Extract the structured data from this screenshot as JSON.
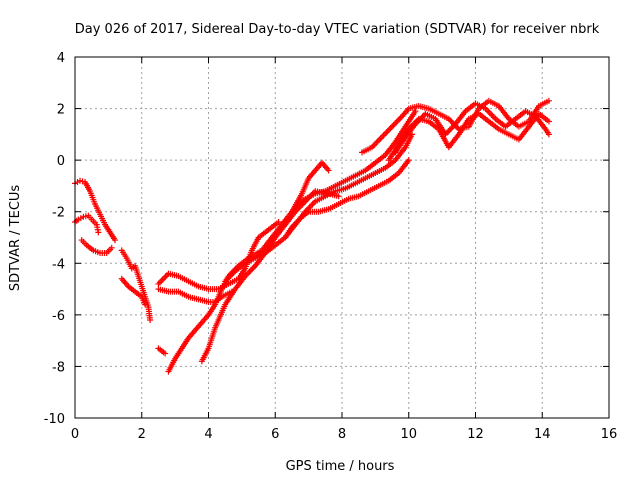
{
  "chart_data": {
    "type": "scatter",
    "title": "Day 026 of 2017, Sidereal Day-to-day VTEC variation (SDTVAR) for receiver nbrk",
    "xlabel": "GPS time / hours",
    "ylabel": "SDTVAR / TECUs",
    "xlim": [
      0,
      16
    ],
    "ylim": [
      -10,
      4
    ],
    "xticks": [
      "0",
      "2",
      "4",
      "6",
      "8",
      "10",
      "12",
      "14",
      "16"
    ],
    "yticks": [
      "-10",
      "-8",
      "-6",
      "-4",
      "-2",
      "0",
      "2",
      "4"
    ],
    "grid": true,
    "marker": "plus",
    "color": "#ff0000",
    "series": [
      {
        "points": [
          [
            0.0,
            -0.9
          ],
          [
            0.15,
            -0.8
          ],
          [
            0.3,
            -0.85
          ],
          [
            0.45,
            -1.2
          ],
          [
            0.6,
            -1.7
          ],
          [
            0.75,
            -2.1
          ],
          [
            0.9,
            -2.5
          ],
          [
            1.1,
            -2.9
          ],
          [
            1.2,
            -3.1
          ]
        ]
      },
      {
        "points": [
          [
            0.0,
            -2.4
          ],
          [
            0.1,
            -2.3
          ],
          [
            0.25,
            -2.2
          ],
          [
            0.4,
            -2.15
          ],
          [
            0.5,
            -2.3
          ],
          [
            0.65,
            -2.5
          ],
          [
            0.7,
            -2.8
          ]
        ]
      },
      {
        "points": [
          [
            0.2,
            -3.1
          ],
          [
            0.35,
            -3.3
          ],
          [
            0.55,
            -3.5
          ],
          [
            0.75,
            -3.6
          ],
          [
            0.95,
            -3.6
          ],
          [
            1.1,
            -3.4
          ]
        ]
      },
      {
        "points": [
          [
            1.4,
            -3.5
          ],
          [
            1.55,
            -3.8
          ],
          [
            1.7,
            -4.2
          ],
          [
            1.8,
            -4.1
          ],
          [
            1.9,
            -4.5
          ],
          [
            2.0,
            -4.9
          ],
          [
            2.1,
            -5.3
          ],
          [
            2.2,
            -5.7
          ],
          [
            2.25,
            -6.2
          ]
        ]
      },
      {
        "points": [
          [
            1.4,
            -4.6
          ],
          [
            1.6,
            -4.9
          ],
          [
            1.8,
            -5.1
          ],
          [
            2.0,
            -5.3
          ],
          [
            2.1,
            -5.6
          ]
        ]
      },
      {
        "points": [
          [
            2.5,
            -4.8
          ],
          [
            2.8,
            -4.4
          ],
          [
            3.1,
            -4.5
          ],
          [
            3.4,
            -4.7
          ],
          [
            3.7,
            -4.9
          ],
          [
            4.0,
            -5.0
          ],
          [
            4.3,
            -5.0
          ],
          [
            4.6,
            -4.8
          ],
          [
            4.9,
            -4.6
          ],
          [
            5.1,
            -4.2
          ],
          [
            5.3,
            -3.5
          ],
          [
            5.5,
            -3.0
          ],
          [
            5.8,
            -2.7
          ],
          [
            6.1,
            -2.4
          ]
        ]
      },
      {
        "points": [
          [
            2.5,
            -5.0
          ],
          [
            2.8,
            -5.1
          ],
          [
            3.1,
            -5.1
          ],
          [
            3.4,
            -5.3
          ],
          [
            3.7,
            -5.4
          ],
          [
            4.0,
            -5.5
          ],
          [
            4.2,
            -5.5
          ],
          [
            4.4,
            -5.3
          ],
          [
            4.7,
            -5.1
          ]
        ]
      },
      {
        "points": [
          [
            2.5,
            -7.3
          ],
          [
            2.7,
            -7.5
          ]
        ]
      },
      {
        "points": [
          [
            2.8,
            -8.2
          ],
          [
            3.0,
            -7.7
          ],
          [
            3.2,
            -7.3
          ],
          [
            3.4,
            -6.9
          ],
          [
            3.6,
            -6.6
          ],
          [
            3.8,
            -6.3
          ],
          [
            4.0,
            -6.0
          ],
          [
            4.2,
            -5.6
          ],
          [
            4.4,
            -5.0
          ],
          [
            4.6,
            -4.5
          ],
          [
            4.9,
            -4.1
          ],
          [
            5.2,
            -3.8
          ],
          [
            5.6,
            -3.5
          ],
          [
            5.9,
            -3.0
          ],
          [
            6.2,
            -2.5
          ],
          [
            6.5,
            -2.0
          ],
          [
            6.8,
            -1.3
          ],
          [
            7.0,
            -0.7
          ],
          [
            7.2,
            -0.4
          ],
          [
            7.4,
            -0.1
          ],
          [
            7.6,
            -0.4
          ]
        ]
      },
      {
        "points": [
          [
            3.8,
            -7.8
          ],
          [
            4.0,
            -7.3
          ],
          [
            4.2,
            -6.5
          ],
          [
            4.5,
            -5.6
          ],
          [
            4.8,
            -5.0
          ],
          [
            5.1,
            -4.5
          ],
          [
            5.4,
            -4.1
          ],
          [
            5.7,
            -3.6
          ],
          [
            6.0,
            -3.0
          ],
          [
            6.3,
            -2.5
          ],
          [
            6.6,
            -2.0
          ],
          [
            6.9,
            -1.6
          ],
          [
            7.2,
            -1.2
          ],
          [
            7.6,
            -1.3
          ],
          [
            7.9,
            -1.4
          ]
        ]
      },
      {
        "points": [
          [
            4.5,
            -4.7
          ],
          [
            4.8,
            -4.3
          ],
          [
            5.1,
            -4.0
          ],
          [
            5.4,
            -3.8
          ],
          [
            5.7,
            -3.6
          ],
          [
            6.0,
            -3.3
          ],
          [
            6.3,
            -3.0
          ],
          [
            6.6,
            -2.5
          ],
          [
            6.9,
            -2.0
          ],
          [
            7.2,
            -1.6
          ],
          [
            7.5,
            -1.4
          ],
          [
            7.8,
            -1.2
          ],
          [
            8.1,
            -1.1
          ],
          [
            8.4,
            -0.9
          ],
          [
            8.7,
            -0.7
          ],
          [
            9.0,
            -0.5
          ],
          [
            9.3,
            -0.3
          ],
          [
            9.6,
            0.0
          ],
          [
            9.9,
            0.5
          ],
          [
            10.1,
            1.0
          ]
        ]
      },
      {
        "points": [
          [
            6.3,
            -3.0
          ],
          [
            6.5,
            -2.6
          ],
          [
            6.8,
            -2.2
          ],
          [
            7.0,
            -2.0
          ],
          [
            7.3,
            -2.0
          ],
          [
            7.6,
            -1.9
          ],
          [
            7.9,
            -1.7
          ],
          [
            8.2,
            -1.5
          ],
          [
            8.5,
            -1.4
          ],
          [
            8.8,
            -1.2
          ],
          [
            9.1,
            -1.0
          ],
          [
            9.4,
            -0.8
          ],
          [
            9.7,
            -0.5
          ],
          [
            10.0,
            0.0
          ]
        ]
      },
      {
        "points": [
          [
            6.6,
            -1.8
          ],
          [
            6.9,
            -1.5
          ],
          [
            7.2,
            -1.3
          ],
          [
            7.5,
            -1.2
          ],
          [
            7.8,
            -1.0
          ],
          [
            8.1,
            -0.8
          ],
          [
            8.4,
            -0.6
          ],
          [
            8.7,
            -0.4
          ],
          [
            9.0,
            -0.1
          ],
          [
            9.3,
            0.2
          ],
          [
            9.6,
            0.7
          ],
          [
            9.9,
            1.3
          ],
          [
            10.2,
            1.9
          ]
        ]
      },
      {
        "points": [
          [
            8.6,
            0.3
          ],
          [
            8.9,
            0.5
          ],
          [
            9.2,
            0.9
          ],
          [
            9.5,
            1.3
          ],
          [
            9.8,
            1.7
          ],
          [
            10.0,
            2.0
          ],
          [
            10.3,
            2.1
          ],
          [
            10.6,
            2.0
          ],
          [
            10.9,
            1.8
          ],
          [
            11.2,
            1.6
          ],
          [
            11.5,
            1.2
          ],
          [
            11.8,
            1.3
          ],
          [
            12.1,
            2.0
          ],
          [
            12.4,
            2.3
          ],
          [
            12.7,
            2.1
          ],
          [
            13.0,
            1.6
          ],
          [
            13.3,
            1.3
          ],
          [
            13.6,
            1.5
          ],
          [
            13.9,
            2.1
          ],
          [
            14.2,
            2.3
          ]
        ]
      },
      {
        "points": [
          [
            9.4,
            0.0
          ],
          [
            9.7,
            0.6
          ],
          [
            10.0,
            1.2
          ],
          [
            10.3,
            1.6
          ],
          [
            10.6,
            1.5
          ],
          [
            10.9,
            1.2
          ],
          [
            11.2,
            0.5
          ],
          [
            11.5,
            1.0
          ],
          [
            11.8,
            1.6
          ],
          [
            12.1,
            1.8
          ],
          [
            12.4,
            1.5
          ],
          [
            12.7,
            1.2
          ],
          [
            13.0,
            1.0
          ],
          [
            13.3,
            0.8
          ],
          [
            13.6,
            1.3
          ],
          [
            13.9,
            1.8
          ],
          [
            14.2,
            1.5
          ]
        ]
      },
      {
        "points": [
          [
            9.6,
            0.3
          ],
          [
            9.9,
            0.9
          ],
          [
            10.2,
            1.4
          ],
          [
            10.5,
            1.8
          ],
          [
            10.8,
            1.6
          ],
          [
            11.1,
            1.0
          ],
          [
            11.4,
            1.4
          ],
          [
            11.7,
            1.9
          ],
          [
            12.0,
            2.2
          ],
          [
            12.3,
            2.0
          ],
          [
            12.6,
            1.6
          ],
          [
            12.9,
            1.3
          ],
          [
            13.2,
            1.6
          ],
          [
            13.5,
            1.9
          ],
          [
            13.8,
            1.7
          ],
          [
            14.1,
            1.2
          ],
          [
            14.2,
            1.0
          ]
        ]
      }
    ]
  }
}
